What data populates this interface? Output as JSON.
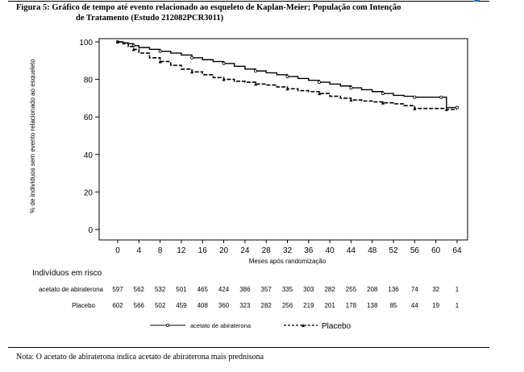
{
  "title_line1": "Figura 5: Gráfico de tempo até evento relacionado ao esqueleto de Kaplan-Meier; População com Intenção",
  "title_line2": "de Tratamento (Estudo 212082PCR3011)",
  "note": "Nota: O acetato de abiraterona indica acetato de abiraterona mais prednisona",
  "colors": {
    "text": "#000000",
    "accent": "#2a6ab8"
  },
  "chart_data": {
    "type": "line",
    "xlabel": "Meses após randomização",
    "ylabel": "% de indivíduos sem evento relacionado ao esqueleto",
    "xlim": [
      0,
      64
    ],
    "ylim": [
      0,
      100
    ],
    "xticks": [
      0,
      4,
      8,
      12,
      16,
      20,
      24,
      28,
      32,
      36,
      40,
      44,
      48,
      52,
      56,
      60,
      64
    ],
    "yticks": [
      0,
      20,
      40,
      60,
      80,
      100
    ],
    "grid": false,
    "legend_position": "bottom",
    "series": [
      {
        "name": "acetato de abiraterona",
        "style": "solid",
        "x": [
          0,
          1,
          2,
          3,
          4,
          6,
          8,
          10,
          12,
          14,
          16,
          18,
          20,
          22,
          24,
          26,
          28,
          30,
          32,
          34,
          36,
          38,
          40,
          42,
          44,
          46,
          48,
          50,
          52,
          54,
          56,
          58,
          60,
          61,
          62,
          63,
          64
        ],
        "y": [
          100,
          99.5,
          99,
          98,
          97,
          96,
          95,
          94,
          93,
          91.5,
          90.5,
          89.5,
          88.5,
          87,
          85.5,
          84.5,
          83.5,
          82.5,
          81.5,
          80.5,
          79.5,
          78.5,
          77.5,
          76.5,
          75.5,
          74.5,
          73.5,
          72.5,
          71.5,
          71,
          70.5,
          70.5,
          70.5,
          70.5,
          65,
          65,
          65
        ]
      },
      {
        "name": "Placebo",
        "style": "dashed",
        "x": [
          0,
          1,
          2,
          3,
          4,
          6,
          8,
          10,
          12,
          14,
          16,
          18,
          20,
          22,
          24,
          26,
          28,
          30,
          32,
          34,
          36,
          38,
          40,
          42,
          44,
          46,
          48,
          50,
          52,
          54,
          56,
          58,
          60,
          62,
          64
        ],
        "y": [
          100,
          99,
          97.5,
          96,
          94,
          91.5,
          89.5,
          87.5,
          85.5,
          84,
          82.5,
          81,
          80,
          79,
          78.5,
          77.5,
          77,
          76,
          75,
          74,
          73.5,
          72.5,
          71,
          70,
          69,
          68.5,
          68,
          67.5,
          67,
          66,
          64.5,
          64.5,
          64.5,
          64,
          64
        ]
      }
    ],
    "risk_table": {
      "header": "Indivíduos em risco",
      "rows": [
        {
          "label": "acetato de abiraterona",
          "values": [
            "597",
            "562",
            "532",
            "501",
            "465",
            "424",
            "386",
            "357",
            "335",
            "303",
            "282",
            "255",
            "208",
            "136",
            "74",
            "32",
            "1"
          ]
        },
        {
          "label": "Placebo",
          "values": [
            "602",
            "566",
            "502",
            "459",
            "408",
            "360",
            "323",
            "282",
            "256",
            "219",
            "201",
            "178",
            "138",
            "85",
            "44",
            "19",
            "1"
          ]
        }
      ]
    }
  }
}
